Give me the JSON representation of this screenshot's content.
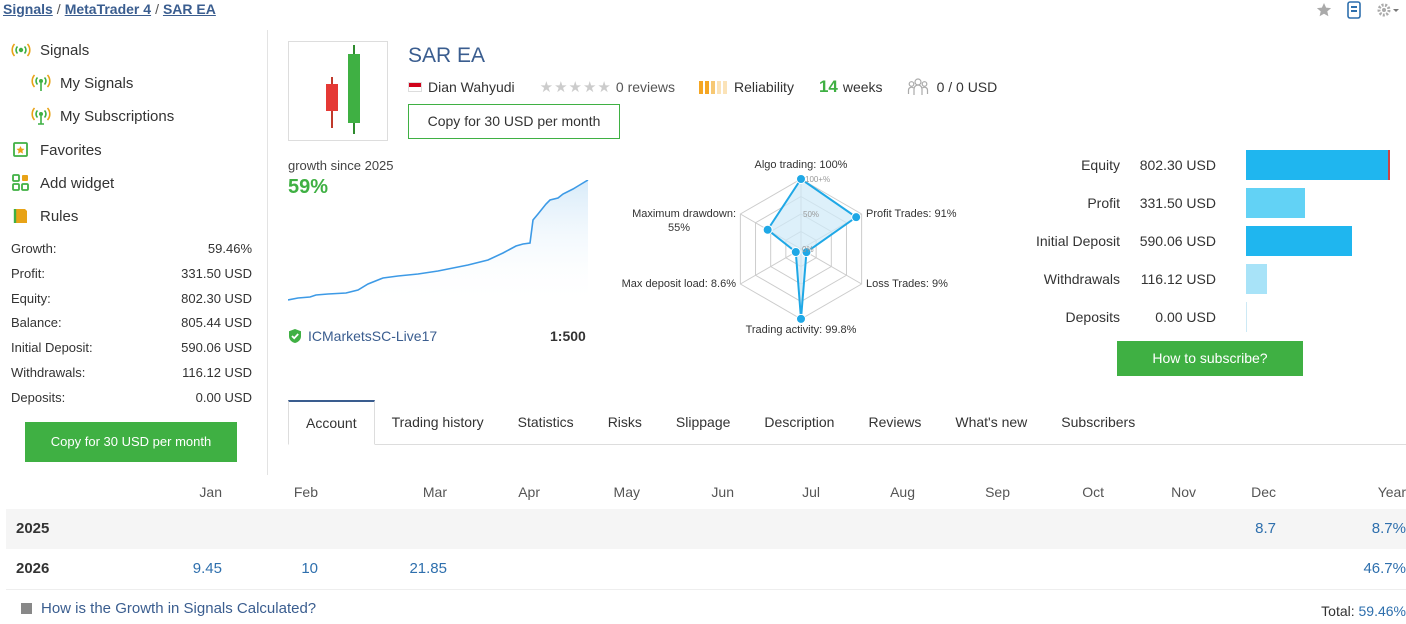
{
  "breadcrumb": {
    "items": [
      "Signals",
      "MetaTrader 4",
      "SAR EA"
    ],
    "separator": "/"
  },
  "sidebar": {
    "menu": [
      {
        "label": "Signals",
        "icon": "signal-icon"
      },
      {
        "label": "My Signals",
        "icon": "signal-icon"
      },
      {
        "label": "My Subscriptions",
        "icon": "signal-subscription-icon"
      },
      {
        "label": "Favorites",
        "icon": "favorites-icon"
      },
      {
        "label": "Add widget",
        "icon": "widget-icon"
      },
      {
        "label": "Rules",
        "icon": "rules-icon"
      }
    ],
    "stats": [
      {
        "label": "Growth:",
        "value": "59.46%"
      },
      {
        "label": "Profit:",
        "value": "331.50 USD"
      },
      {
        "label": "Equity:",
        "value": "802.30 USD"
      },
      {
        "label": "Balance:",
        "value": "805.44 USD"
      },
      {
        "label": "Initial Deposit:",
        "value": "590.06 USD"
      },
      {
        "label": "Withdrawals:",
        "value": "116.12 USD"
      },
      {
        "label": "Deposits:",
        "value": "0.00 USD"
      }
    ],
    "copy_button": "Copy for 30 USD per month"
  },
  "signal": {
    "title": "SAR EA",
    "author": "Dian Wahyudi",
    "reviews": "0 reviews",
    "reliability": "Reliability",
    "weeks_num": "14",
    "weeks_label": "weeks",
    "subscribers": "0 / 0 USD",
    "copy_button": "Copy for 30 USD per month"
  },
  "growth": {
    "label": "growth since 2025",
    "value": "59%",
    "broker": "ICMarketsSC-Live17",
    "leverage": "1:500"
  },
  "radar": {
    "labels": {
      "algo": "Algo trading: 100%",
      "profit": "Profit Trades: 91%",
      "loss": "Loss Trades: 9%",
      "activity": "Trading activity: 99.8%",
      "deposit": "Max deposit load: 8.6%",
      "drawdown_1": "Maximum drawdown:",
      "drawdown_2": "55%"
    },
    "ticks": [
      "100+%",
      "50%",
      "0%"
    ],
    "values": {
      "algo": 100,
      "profit": 91,
      "loss": 9,
      "activity": 99.8,
      "deposit": 8.6,
      "drawdown": 55
    }
  },
  "balance_bars": [
    {
      "label": "Equity",
      "value": "802.30 USD",
      "amount": 802.3,
      "color": "#1fb6ef"
    },
    {
      "label": "Profit",
      "value": "331.50 USD",
      "amount": 331.5,
      "color": "#62d2f5"
    },
    {
      "label": "Initial Deposit",
      "value": "590.06 USD",
      "amount": 590.06,
      "color": "#1fb6ef"
    },
    {
      "label": "Withdrawals",
      "value": "116.12 USD",
      "amount": 116.12,
      "color": "#a8e3f8"
    },
    {
      "label": "Deposits",
      "value": "0.00 USD",
      "amount": 0,
      "color": "#a8e3f8"
    }
  ],
  "how_button": "How to subscribe?",
  "tabs": [
    "Account",
    "Trading history",
    "Statistics",
    "Risks",
    "Slippage",
    "Description",
    "Reviews",
    "What's new",
    "Subscribers"
  ],
  "months": [
    "Jan",
    "Feb",
    "Mar",
    "Apr",
    "May",
    "Jun",
    "Jul",
    "Aug",
    "Sep",
    "Oct",
    "Nov",
    "Dec",
    "Year"
  ],
  "years": [
    {
      "year": "2025",
      "values": [
        "",
        "",
        "",
        "",
        "",
        "",
        "",
        "",
        "",
        "",
        "",
        "8.7",
        "8.7%"
      ]
    },
    {
      "year": "2026",
      "values": [
        "9.45",
        "10",
        "21.85",
        "",
        "",
        "",
        "",
        "",
        "",
        "",
        "",
        "",
        "46.7%"
      ]
    }
  ],
  "footer": {
    "link": "How is the Growth in Signals Calculated?",
    "total_label": "Total:",
    "total_value": "59.46%"
  }
}
